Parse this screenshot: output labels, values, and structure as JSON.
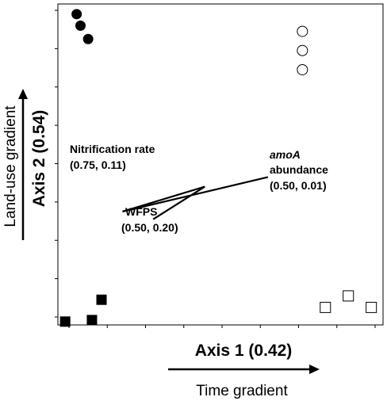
{
  "chart_data": {
    "type": "scatter",
    "title": "",
    "xlabel": "Axis 1 (0.42)",
    "ylabel": "Axis 2 (0.54)",
    "x_gradient_label": "Time gradient",
    "y_gradient_label": "Land-use gradient",
    "grid": false,
    "xlim": [
      0,
      8
    ],
    "ylim": [
      0,
      8
    ],
    "series": [
      {
        "marker": "filled-circle",
        "points": [
          [
            0.2,
            7.9
          ],
          [
            0.3,
            7.6
          ],
          [
            0.5,
            7.25
          ]
        ]
      },
      {
        "marker": "open-circle",
        "points": [
          [
            6.1,
            7.45
          ],
          [
            6.1,
            6.95
          ],
          [
            6.1,
            6.45
          ]
        ]
      },
      {
        "marker": "filled-square",
        "points": [
          [
            -0.1,
            -0.12
          ],
          [
            0.6,
            -0.08
          ],
          [
            0.85,
            0.45
          ]
        ]
      },
      {
        "marker": "open-square",
        "points": [
          [
            6.7,
            0.25
          ],
          [
            7.3,
            0.55
          ],
          [
            7.9,
            0.25
          ]
        ]
      }
    ],
    "vectors": [
      {
        "from": [
          1.4,
          2.75
        ],
        "to": [
          5.2,
          3.65
        ],
        "label": "",
        "label_lines": [
          "amoA",
          "abundance",
          "(0.50, 0.01)"
        ]
      },
      {
        "from": [
          2.2,
          2.55
        ],
        "to": [
          3.55,
          3.4
        ],
        "label": "",
        "label_lines": [
          "WFPS",
          "(0.50, 0.20)"
        ]
      },
      {
        "from": [
          3.55,
          3.4
        ],
        "to": [
          1.4,
          2.75
        ],
        "label": "",
        "label_lines": [
          "Nitrification rate",
          "(0.75, 0.11)"
        ]
      }
    ]
  }
}
